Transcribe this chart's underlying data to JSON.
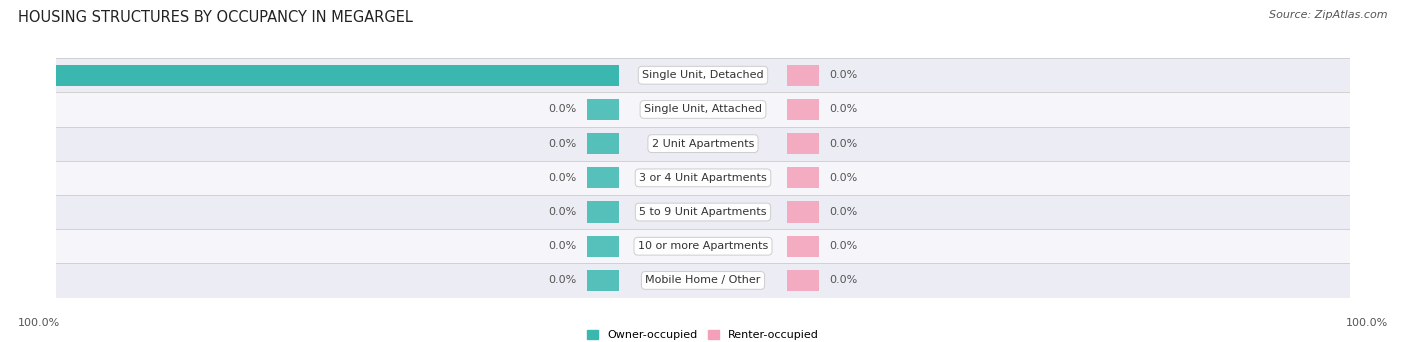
{
  "title": "HOUSING STRUCTURES BY OCCUPANCY IN MEGARGEL",
  "source": "Source: ZipAtlas.com",
  "categories": [
    "Single Unit, Detached",
    "Single Unit, Attached",
    "2 Unit Apartments",
    "3 or 4 Unit Apartments",
    "5 to 9 Unit Apartments",
    "10 or more Apartments",
    "Mobile Home / Other"
  ],
  "owner_values": [
    100.0,
    0.0,
    0.0,
    0.0,
    0.0,
    0.0,
    0.0
  ],
  "renter_values": [
    0.0,
    0.0,
    0.0,
    0.0,
    0.0,
    0.0,
    0.0
  ],
  "owner_color": "#3ab8b0",
  "renter_color": "#f4a0b8",
  "row_bg_even": "#ececf4",
  "row_bg_odd": "#f5f5fa",
  "title_fontsize": 10.5,
  "source_fontsize": 8,
  "label_fontsize": 8,
  "cat_fontsize": 8,
  "legend_fontsize": 8,
  "xlim": [
    -100,
    100
  ],
  "min_bar_size": 5,
  "bar_height": 0.62
}
